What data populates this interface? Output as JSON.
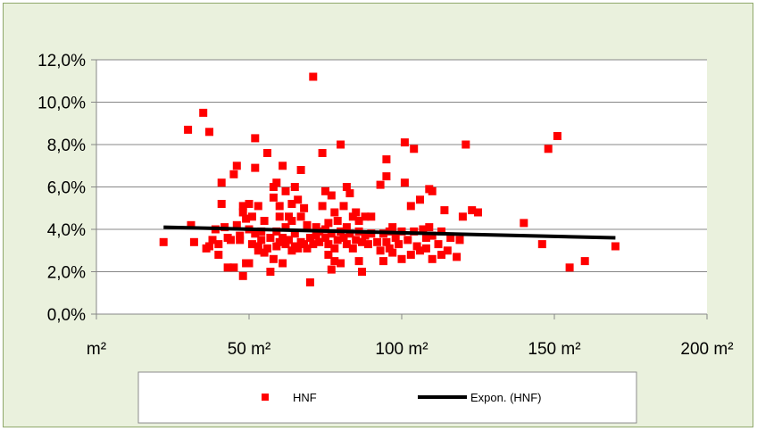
{
  "chart_data": {
    "type": "scatter",
    "title": "",
    "xlabel": "",
    "ylabel": "",
    "xlim": [
      0,
      200
    ],
    "ylim": [
      0,
      12
    ],
    "x_ticks": [
      {
        "value": 0,
        "label": "m²"
      },
      {
        "value": 50,
        "label": "50 m²"
      },
      {
        "value": 100,
        "label": "100 m²"
      },
      {
        "value": 150,
        "label": "150 m²"
      },
      {
        "value": 200,
        "label": "200 m²"
      }
    ],
    "y_ticks": [
      {
        "value": 0,
        "label": "0,0%"
      },
      {
        "value": 2,
        "label": "2,0%"
      },
      {
        "value": 4,
        "label": "4,0%"
      },
      {
        "value": 6,
        "label": "6,0%"
      },
      {
        "value": 8,
        "label": "8,0%"
      },
      {
        "value": 10,
        "label": "10,0%"
      },
      {
        "value": 12,
        "label": "12,0%"
      }
    ],
    "grid": "horizontal",
    "legend_position": "bottom",
    "series": [
      {
        "name": "HNF",
        "kind": "scatter",
        "color": "#ff0000",
        "points": [
          [
            22,
            3.4
          ],
          [
            30,
            8.7
          ],
          [
            31,
            4.2
          ],
          [
            32,
            3.4
          ],
          [
            35,
            9.5
          ],
          [
            36,
            3.1
          ],
          [
            37,
            8.6
          ],
          [
            37,
            3.2
          ],
          [
            38,
            3.5
          ],
          [
            39,
            4.0
          ],
          [
            40,
            3.3
          ],
          [
            40,
            2.8
          ],
          [
            41,
            6.2
          ],
          [
            41,
            5.2
          ],
          [
            42,
            4.1
          ],
          [
            43,
            3.6
          ],
          [
            43,
            2.2
          ],
          [
            44,
            3.5
          ],
          [
            45,
            6.6
          ],
          [
            45,
            2.2
          ],
          [
            46,
            7.0
          ],
          [
            46,
            4.2
          ],
          [
            47,
            3.5
          ],
          [
            47,
            3.7
          ],
          [
            48,
            1.8
          ],
          [
            48,
            4.8
          ],
          [
            48,
            5.1
          ],
          [
            49,
            2.4
          ],
          [
            49,
            4.5
          ],
          [
            50,
            5.2
          ],
          [
            50,
            4.0
          ],
          [
            50,
            2.4
          ],
          [
            51,
            3.3
          ],
          [
            51,
            4.6
          ],
          [
            52,
            6.9
          ],
          [
            52,
            8.3
          ],
          [
            52,
            3.8
          ],
          [
            53,
            5.1
          ],
          [
            53,
            3.2
          ],
          [
            53,
            3.0
          ],
          [
            54,
            3.5
          ],
          [
            54,
            3.9
          ],
          [
            55,
            4.4
          ],
          [
            55,
            2.9
          ],
          [
            56,
            7.6
          ],
          [
            56,
            3.1
          ],
          [
            57,
            3.6
          ],
          [
            57,
            2.0
          ],
          [
            58,
            2.6
          ],
          [
            58,
            5.5
          ],
          [
            58,
            6.0
          ],
          [
            59,
            6.2
          ],
          [
            59,
            3.2
          ],
          [
            59,
            3.9
          ],
          [
            60,
            4.6
          ],
          [
            60,
            5.1
          ],
          [
            60,
            3.4
          ],
          [
            61,
            7.0
          ],
          [
            61,
            3.6
          ],
          [
            61,
            2.4
          ],
          [
            62,
            4.1
          ],
          [
            62,
            3.3
          ],
          [
            62,
            5.8
          ],
          [
            63,
            4.6
          ],
          [
            63,
            3.5
          ],
          [
            64,
            5.2
          ],
          [
            64,
            3.0
          ],
          [
            64,
            4.4
          ],
          [
            65,
            6.0
          ],
          [
            65,
            3.2
          ],
          [
            65,
            3.8
          ],
          [
            66,
            5.4
          ],
          [
            66,
            3.1
          ],
          [
            67,
            6.8
          ],
          [
            67,
            4.6
          ],
          [
            67,
            3.4
          ],
          [
            68,
            5.0
          ],
          [
            68,
            3.3
          ],
          [
            69,
            4.2
          ],
          [
            69,
            3.1
          ],
          [
            70,
            1.5
          ],
          [
            70,
            3.6
          ],
          [
            71,
            11.2
          ],
          [
            71,
            3.3
          ],
          [
            72,
            4.1
          ],
          [
            72,
            3.7
          ],
          [
            73,
            3.9
          ],
          [
            73,
            3.4
          ],
          [
            74,
            7.6
          ],
          [
            74,
            5.1
          ],
          [
            75,
            4.0
          ],
          [
            75,
            3.6
          ],
          [
            75,
            5.8
          ],
          [
            76,
            3.3
          ],
          [
            76,
            4.3
          ],
          [
            76,
            2.8
          ],
          [
            77,
            3.8
          ],
          [
            77,
            2.1
          ],
          [
            77,
            5.6
          ],
          [
            78,
            4.8
          ],
          [
            78,
            3.1
          ],
          [
            78,
            2.5
          ],
          [
            79,
            4.4
          ],
          [
            79,
            3.5
          ],
          [
            80,
            8.0
          ],
          [
            80,
            3.9
          ],
          [
            80,
            2.4
          ],
          [
            81,
            5.1
          ],
          [
            81,
            3.6
          ],
          [
            82,
            4.1
          ],
          [
            82,
            6.0
          ],
          [
            82,
            3.3
          ],
          [
            83,
            3.8
          ],
          [
            83,
            5.7
          ],
          [
            84,
            4.6
          ],
          [
            84,
            3.1
          ],
          [
            85,
            3.5
          ],
          [
            85,
            4.8
          ],
          [
            86,
            2.5
          ],
          [
            86,
            3.9
          ],
          [
            86,
            4.4
          ],
          [
            87,
            2.0
          ],
          [
            87,
            3.4
          ],
          [
            88,
            4.6
          ],
          [
            88,
            3.7
          ],
          [
            89,
            3.3
          ],
          [
            90,
            4.6
          ],
          [
            90,
            3.8
          ],
          [
            92,
            3.4
          ],
          [
            93,
            6.1
          ],
          [
            93,
            3.0
          ],
          [
            94,
            2.5
          ],
          [
            94,
            3.8
          ],
          [
            95,
            6.5
          ],
          [
            95,
            7.3
          ],
          [
            95,
            3.4
          ],
          [
            96,
            3.1
          ],
          [
            96,
            3.9
          ],
          [
            97,
            2.9
          ],
          [
            97,
            4.1
          ],
          [
            98,
            3.6
          ],
          [
            99,
            3.3
          ],
          [
            100,
            2.6
          ],
          [
            100,
            3.9
          ],
          [
            101,
            8.1
          ],
          [
            101,
            6.2
          ],
          [
            102,
            3.5
          ],
          [
            103,
            2.8
          ],
          [
            103,
            5.1
          ],
          [
            104,
            7.8
          ],
          [
            104,
            3.9
          ],
          [
            105,
            3.2
          ],
          [
            106,
            5.4
          ],
          [
            106,
            3.0
          ],
          [
            107,
            4.0
          ],
          [
            108,
            3.1
          ],
          [
            108,
            3.6
          ],
          [
            109,
            5.9
          ],
          [
            109,
            4.1
          ],
          [
            110,
            2.6
          ],
          [
            110,
            5.8
          ],
          [
            110,
            3.7
          ],
          [
            112,
            3.3
          ],
          [
            113,
            2.8
          ],
          [
            113,
            3.9
          ],
          [
            114,
            4.9
          ],
          [
            115,
            3.0
          ],
          [
            116,
            3.6
          ],
          [
            118,
            2.7
          ],
          [
            119,
            3.5
          ],
          [
            120,
            4.6
          ],
          [
            121,
            8.0
          ],
          [
            123,
            4.9
          ],
          [
            125,
            4.8
          ],
          [
            140,
            4.3
          ],
          [
            146,
            3.3
          ],
          [
            148,
            7.8
          ],
          [
            151,
            8.4
          ],
          [
            155,
            2.2
          ],
          [
            160,
            2.5
          ],
          [
            170,
            3.2
          ]
        ]
      },
      {
        "name": "Expon. (HNF)",
        "kind": "trendline",
        "color": "#000000",
        "points": [
          [
            22,
            4.1
          ],
          [
            170,
            3.6
          ]
        ]
      }
    ],
    "legend": [
      {
        "label": "HNF",
        "marker": "square",
        "color": "#ff0000"
      },
      {
        "label": "Expon. (HNF)",
        "marker": "line",
        "color": "#000000"
      }
    ]
  }
}
